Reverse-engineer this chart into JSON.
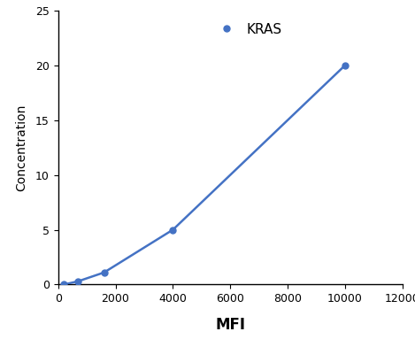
{
  "x": [
    200,
    700,
    1600,
    4000,
    10000
  ],
  "y": [
    0,
    0.3,
    1.1,
    5.0,
    20.0
  ],
  "line_color": "#4472C4",
  "marker_color": "#4472C4",
  "marker_style": "o",
  "marker_size": 5,
  "line_width": 1.8,
  "xlabel": "MFI",
  "ylabel": "Concentration",
  "xlim": [
    0,
    11500
  ],
  "ylim": [
    0,
    25
  ],
  "xticks": [
    0,
    2000,
    4000,
    6000,
    8000,
    10000,
    12000
  ],
  "yticks": [
    0,
    5,
    10,
    15,
    20,
    25
  ],
  "legend_label": "KRAS",
  "xlabel_fontsize": 12,
  "ylabel_fontsize": 10,
  "tick_fontsize": 9,
  "legend_fontsize": 11,
  "background_color": "#ffffff"
}
